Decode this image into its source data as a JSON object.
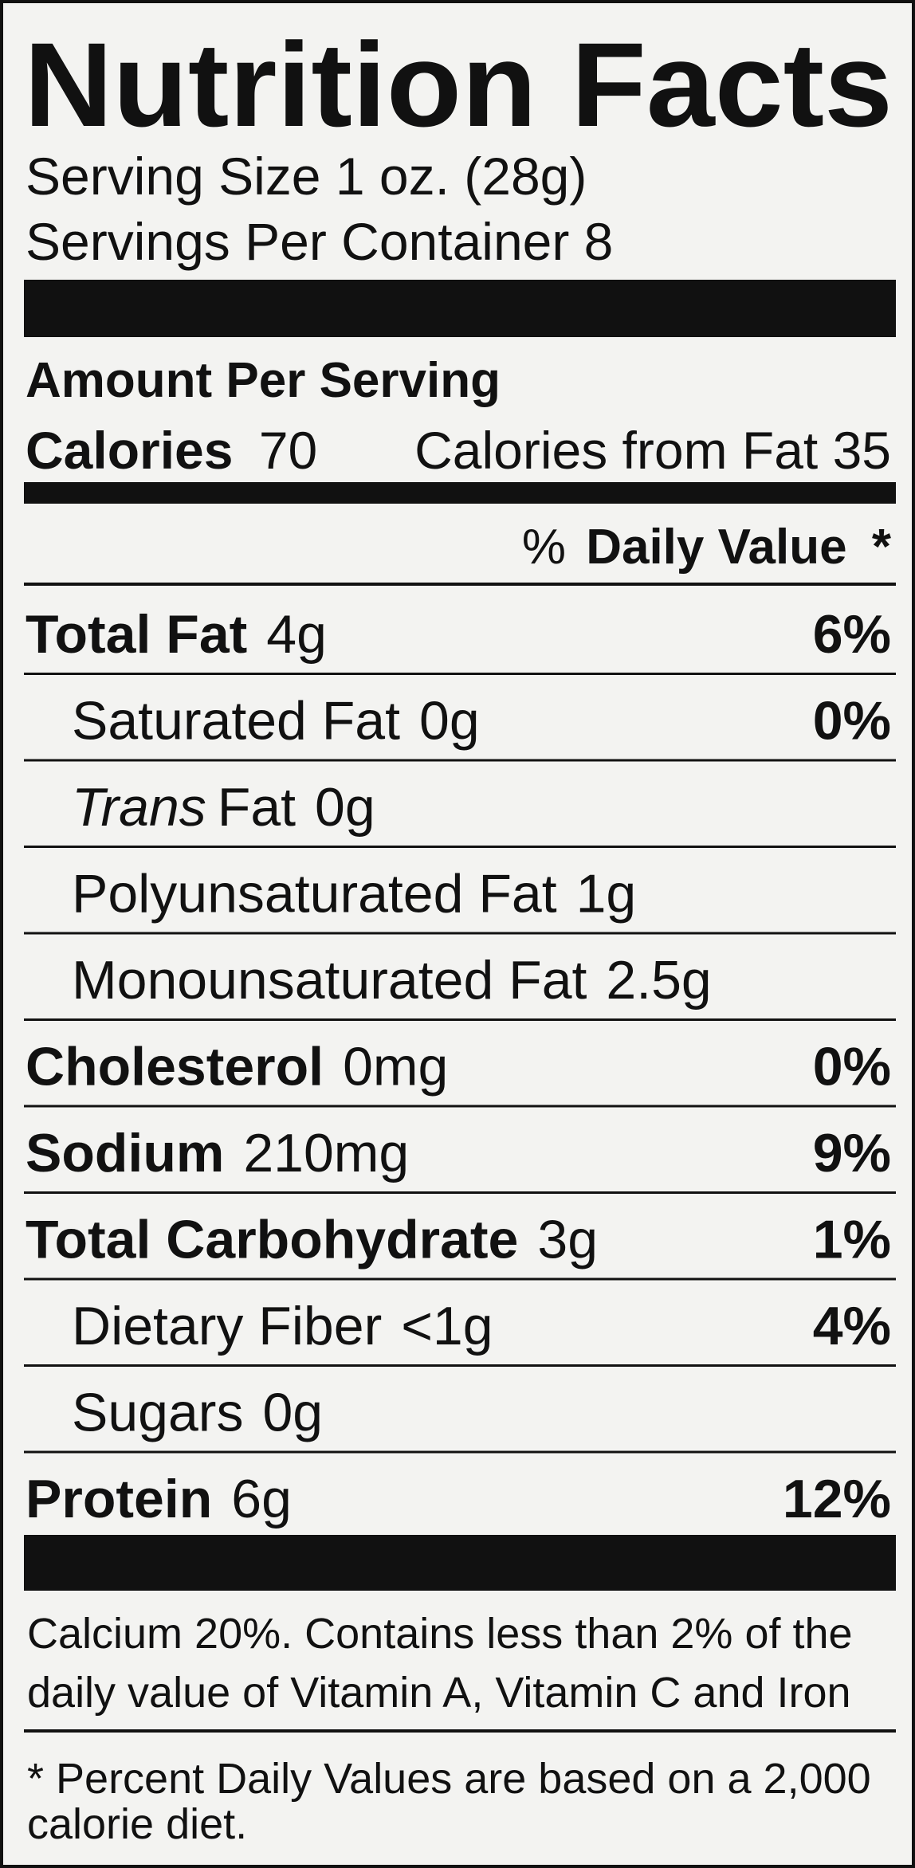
{
  "title": "Nutrition Facts",
  "serving_size": "Serving Size 1 oz. (28g)",
  "servings_per_container": "Servings Per Container 8",
  "amount_per_serving": "Amount Per Serving",
  "calories": {
    "label": "Calories",
    "value": "70",
    "from_fat": "Calories from Fat 35"
  },
  "daily_value_header": {
    "prefix": "%",
    "label": "Daily Value",
    "suffix": "*"
  },
  "rows": [
    {
      "name": "Total Fat",
      "amount": "4g",
      "percent": "6%",
      "bold": true,
      "indent": false
    },
    {
      "name": "Saturated Fat",
      "amount": "0g",
      "percent": "0%",
      "bold": false,
      "indent": true
    },
    {
      "name_italic": "Trans",
      "name": "Fat",
      "amount": "0g",
      "bold": false,
      "indent": true
    },
    {
      "name": "Polyunsaturated Fat",
      "amount": "1g",
      "bold": false,
      "indent": true
    },
    {
      "name": "Monounsaturated Fat",
      "amount": "2.5g",
      "bold": false,
      "indent": true
    },
    {
      "name": "Cholesterol",
      "amount": "0mg",
      "percent": "0%",
      "bold": true,
      "indent": false
    },
    {
      "name": "Sodium",
      "amount": "210mg",
      "percent": "9%",
      "bold": true,
      "indent": false
    },
    {
      "name": "Total Carbohydrate",
      "amount": "3g",
      "percent": "1%",
      "bold": true,
      "indent": false
    },
    {
      "name": "Dietary Fiber",
      "amount": "<1g",
      "percent": "4%",
      "bold": false,
      "indent": true
    },
    {
      "name": "Sugars",
      "amount": "0g",
      "bold": false,
      "indent": true
    },
    {
      "name": "Protein",
      "amount": "6g",
      "percent": "12%",
      "bold": true,
      "indent": false
    }
  ],
  "footnotes": [
    "Calcium 20%. Contains less than 2% of the",
    "daily value of Vitamin A, Vitamin C and Iron",
    "* Percent Daily Values are based on a 2,000",
    "calorie diet."
  ]
}
